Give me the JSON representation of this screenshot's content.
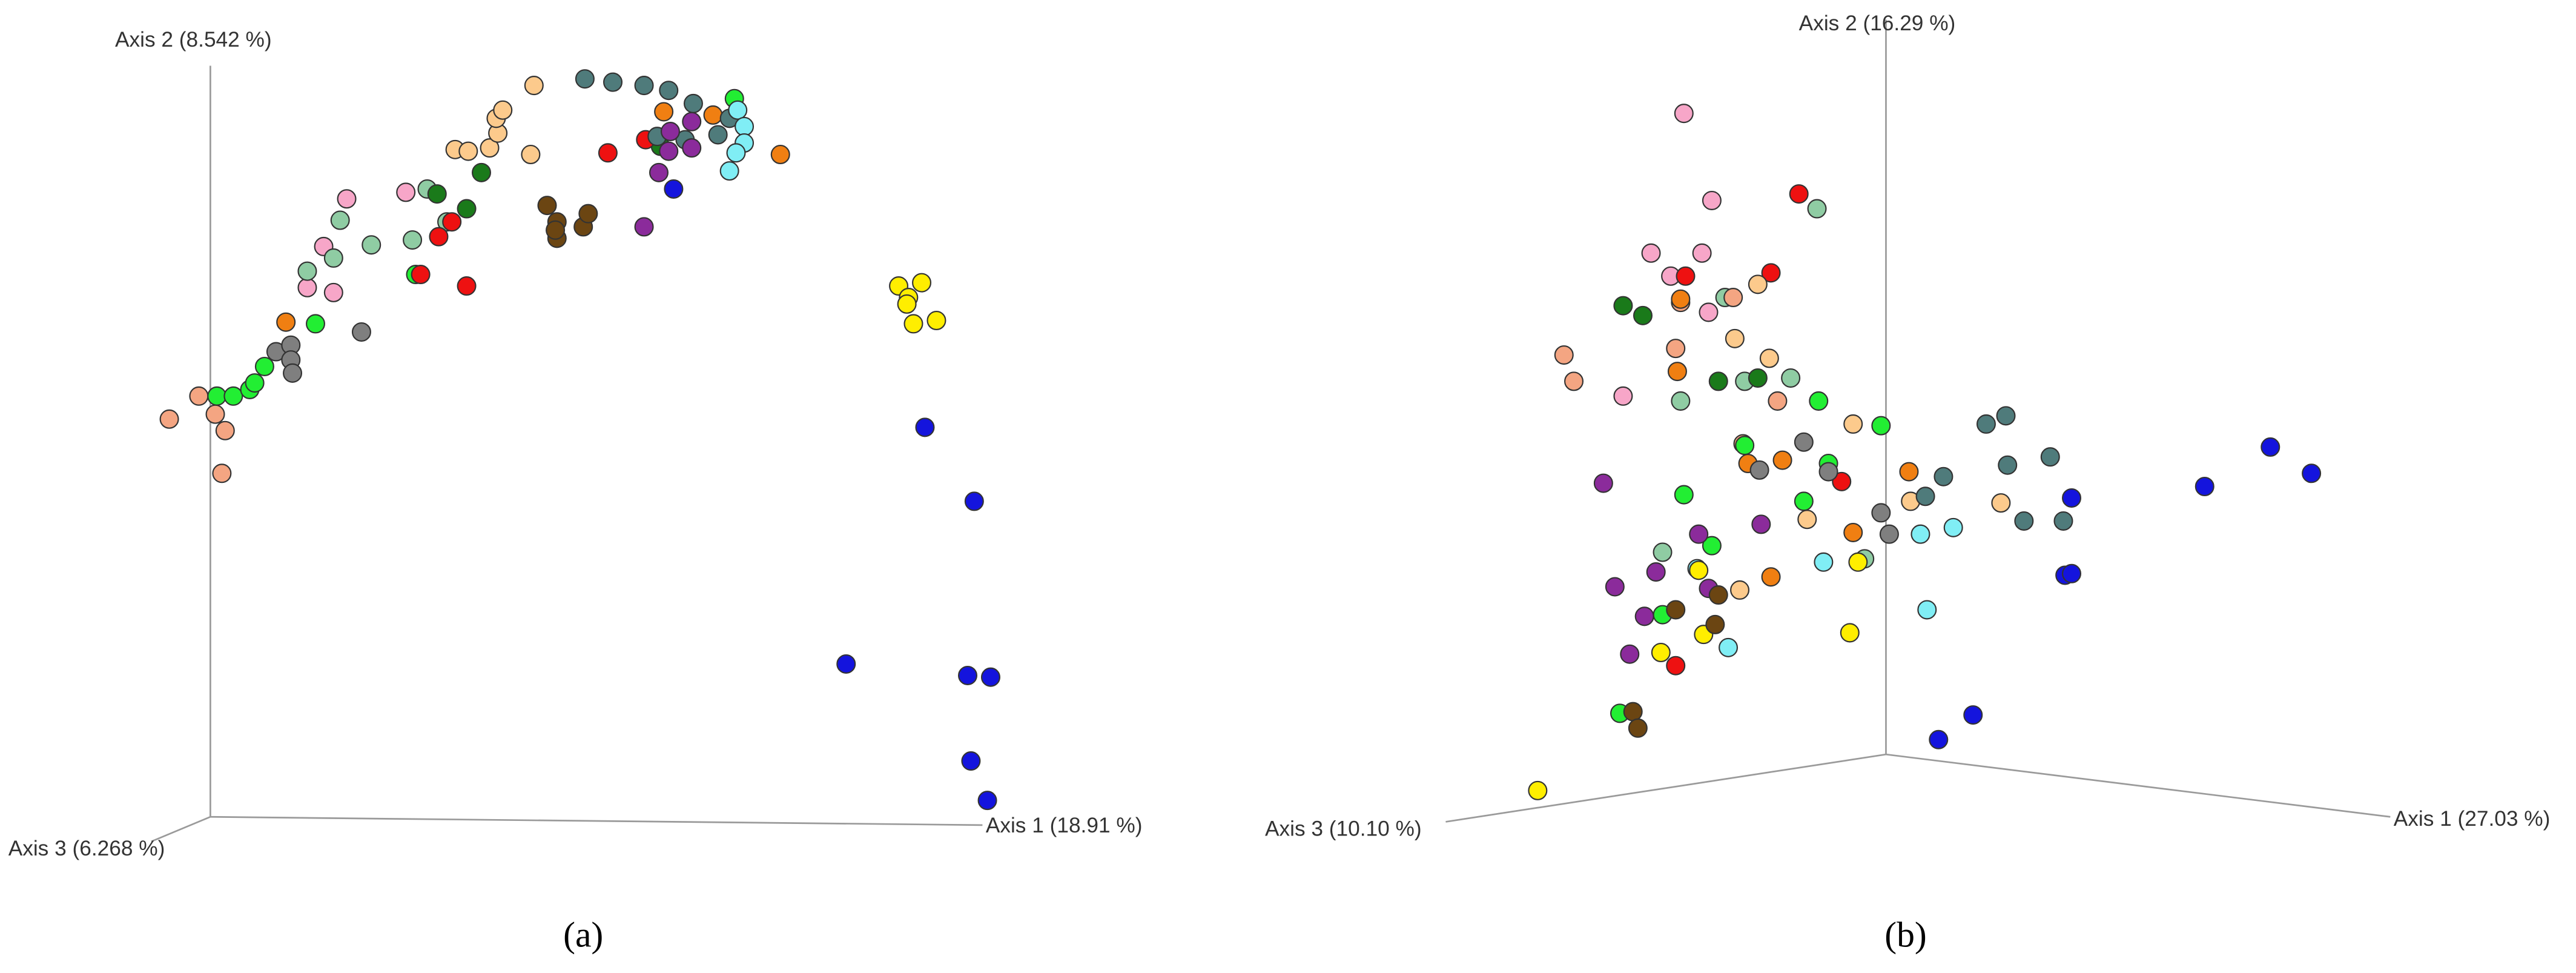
{
  "chart_data": [
    {
      "type": "scatter",
      "panel_label": "(a)",
      "axis_labels": [
        "Axis 1 (18.91 %)",
        "Axis 2 (8.542 %)",
        "Axis 3 (6.268 %)"
      ],
      "xlim": [
        0,
        784
      ],
      "ylim": [
        592,
        0
      ],
      "series": [
        {
          "color": "#f4a582",
          "x": [
            103,
            121,
            131,
            137,
            135
          ],
          "y": [
            255,
            241,
            252,
            262,
            288
          ]
        },
        {
          "color": "#22ee33",
          "x": [
            132,
            142,
            152,
            155,
            161,
            192,
            253,
            447
          ],
          "y": [
            241,
            241,
            237,
            233,
            223,
            197,
            167,
            60
          ]
        },
        {
          "color": "#7f7f7f",
          "x": [
            168,
            177,
            177,
            178,
            220
          ],
          "y": [
            214,
            210,
            219,
            227,
            202
          ]
        },
        {
          "color": "#f07f12",
          "x": [
            174,
            404,
            434,
            475
          ],
          "y": [
            196,
            68,
            70,
            94
          ]
        },
        {
          "color": "#f7a6c8",
          "x": [
            187,
            197,
            203,
            211,
            247
          ],
          "y": [
            175,
            150,
            178,
            121,
            117
          ]
        },
        {
          "color": "#8fcca3",
          "x": [
            187,
            203,
            207,
            226,
            251,
            260,
            272
          ],
          "y": [
            165,
            157,
            134,
            149,
            146,
            115,
            135
          ]
        },
        {
          "color": "#1a7a1a",
          "x": [
            266,
            284,
            293,
            402
          ],
          "y": [
            118,
            127,
            105,
            89
          ]
        },
        {
          "color": "#ee1111",
          "x": [
            256,
            267,
            275,
            284,
            370,
            393
          ],
          "y": [
            167,
            144,
            135,
            174,
            93,
            85
          ]
        },
        {
          "color": "#fcca8c",
          "x": [
            277,
            285,
            298,
            303,
            302,
            306,
            323,
            325
          ],
          "y": [
            91,
            92,
            90,
            81,
            72,
            67,
            94,
            52
          ]
        },
        {
          "color": "#6b4512",
          "x": [
            333,
            339,
            339,
            338,
            355,
            358
          ],
          "y": [
            125,
            135,
            145,
            140,
            138,
            130
          ]
        },
        {
          "color": "#4f7b7b",
          "x": [
            356,
            373,
            392,
            407,
            422,
            400,
            417,
            437,
            444
          ],
          "y": [
            48,
            50,
            52,
            55,
            63,
            83,
            85,
            82,
            72
          ]
        },
        {
          "color": "#8b2b9b",
          "x": [
            392,
            401,
            421,
            408,
            421,
            407
          ],
          "y": [
            138,
            105,
            74,
            80,
            90,
            92
          ]
        },
        {
          "color": "#80eef5",
          "x": [
            449,
            453,
            453,
            448,
            444
          ],
          "y": [
            67,
            77,
            87,
            93,
            104
          ]
        },
        {
          "color": "#1414dd",
          "x": [
            410,
            563,
            593,
            515,
            589,
            603,
            591,
            601
          ],
          "y": [
            115,
            260,
            305,
            404,
            411,
            412,
            463,
            487
          ]
        },
        {
          "color": "#ffee00",
          "x": [
            547,
            553,
            561,
            570,
            556,
            552
          ],
          "y": [
            174,
            181,
            172,
            195,
            197,
            185
          ]
        }
      ]
    },
    {
      "type": "scatter",
      "panel_label": "(b)",
      "axis_labels": [
        "Axis 1 (27.03 %)",
        "Axis 2 (16.29 %)",
        "Axis 3 (10.10 %)"
      ],
      "xlim": [
        0,
        784
      ],
      "ylim": [
        592,
        0
      ],
      "series": [
        {
          "color": "#f7a6c8",
          "x": [
            241,
            258,
            221,
            252,
            233,
            204,
            256
          ],
          "y": [
            69,
            122,
            154,
            154,
            168,
            241,
            190
          ]
        },
        {
          "color": "#ee1111",
          "x": [
            311,
            242,
            294,
            337,
            236
          ],
          "y": [
            118,
            168,
            166,
            293,
            405
          ]
        },
        {
          "color": "#8fcca3",
          "x": [
            322,
            266,
            239,
            278,
            306,
            228,
            351
          ],
          "y": [
            127,
            181,
            244,
            232,
            230,
            336,
            340
          ]
        },
        {
          "color": "#f4a582",
          "x": [
            168,
            174,
            239,
            236,
            271,
            298,
            277
          ],
          "y": [
            216,
            232,
            184,
            212,
            181,
            244,
            270
          ]
        },
        {
          "color": "#1a7a1a",
          "x": [
            204,
            216,
            262,
            286
          ],
          "y": [
            186,
            192,
            232,
            230
          ]
        },
        {
          "color": "#fcca8c",
          "x": [
            286,
            293,
            272,
            316,
            344,
            379,
            434,
            275
          ],
          "y": [
            173,
            218,
            206,
            316,
            258,
            305,
            306,
            359
          ]
        },
        {
          "color": "#f07f12",
          "x": [
            239,
            237,
            280,
            301,
            344,
            378,
            294
          ],
          "y": [
            182,
            226,
            282,
            280,
            324,
            287,
            351
          ]
        },
        {
          "color": "#22ee33",
          "x": [
            323,
            278,
            361,
            241,
            314,
            258,
            329,
            228,
            202
          ],
          "y": [
            244,
            271,
            259,
            301,
            305,
            332,
            282,
            374,
            434
          ]
        },
        {
          "color": "#7f7f7f",
          "x": [
            314,
            287,
            329,
            361,
            366
          ],
          "y": [
            269,
            286,
            287,
            312,
            325
          ]
        },
        {
          "color": "#4f7b7b",
          "x": [
            425,
            437,
            464,
            438,
            399,
            388,
            448,
            472
          ],
          "y": [
            258,
            253,
            278,
            283,
            290,
            302,
            317,
            317
          ]
        },
        {
          "color": "#8b2b9b",
          "x": [
            192,
            288,
            250,
            199,
            224,
            256,
            217,
            208
          ],
          "y": [
            294,
            319,
            325,
            357,
            348,
            358,
            375,
            398
          ]
        },
        {
          "color": "#80eef5",
          "x": [
            405,
            385,
            326,
            249,
            268,
            389
          ],
          "y": [
            321,
            325,
            342,
            346,
            394,
            371
          ]
        },
        {
          "color": "#ffee00",
          "x": [
            347,
            250,
            342,
            253,
            227,
            152
          ],
          "y": [
            342,
            347,
            385,
            386,
            397,
            481
          ]
        },
        {
          "color": "#6b4512",
          "x": [
            262,
            260,
            236,
            210,
            213
          ],
          "y": [
            362,
            380,
            371,
            433,
            443
          ]
        },
        {
          "color": "#1414dd",
          "x": [
            477,
            558,
            598,
            623,
            473,
            477,
            417,
            396
          ],
          "y": [
            303,
            296,
            272,
            288,
            350,
            349,
            435,
            450
          ]
        }
      ]
    }
  ]
}
